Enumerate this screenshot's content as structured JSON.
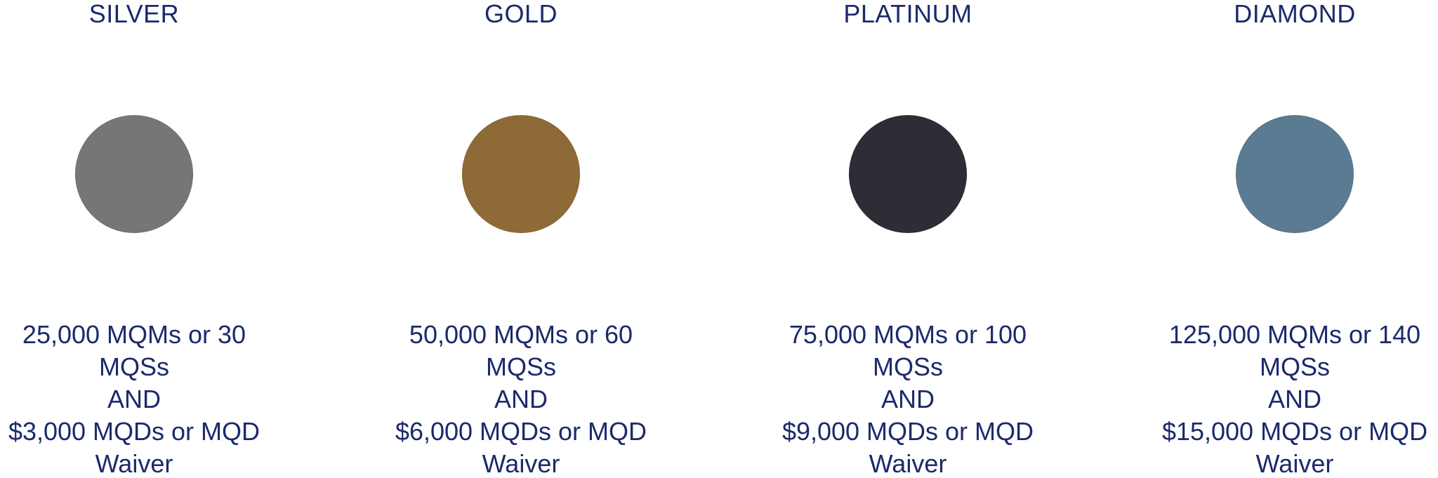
{
  "tiers": [
    {
      "name": "SILVER",
      "color": "#767676",
      "requirement": {
        "line1": "25,000 MQMs or 30",
        "line2": "MQSs",
        "line3": "AND",
        "line4": "$3,000 MQDs or MQD",
        "line5": "Waiver"
      }
    },
    {
      "name": "GOLD",
      "color": "#8e6a36",
      "requirement": {
        "line1": "50,000 MQMs or 60",
        "line2": "MQSs",
        "line3": "AND",
        "line4": "$6,000 MQDs or MQD",
        "line5": "Waiver"
      }
    },
    {
      "name": "PLATINUM",
      "color": "#302c36",
      "requirement": {
        "line1": "75,000 MQMs or 100",
        "line2": "MQSs",
        "line3": "AND",
        "line4": "$9,000 MQDs or MQD",
        "line5": "Waiver"
      }
    },
    {
      "name": "DIAMOND",
      "color": "#5a7b91",
      "requirement": {
        "line1": "125,000 MQMs or 140",
        "line2": "MQSs",
        "line3": "AND",
        "line4": "$15,000 MQDs or MQD",
        "line5": "Waiver"
      }
    }
  ]
}
